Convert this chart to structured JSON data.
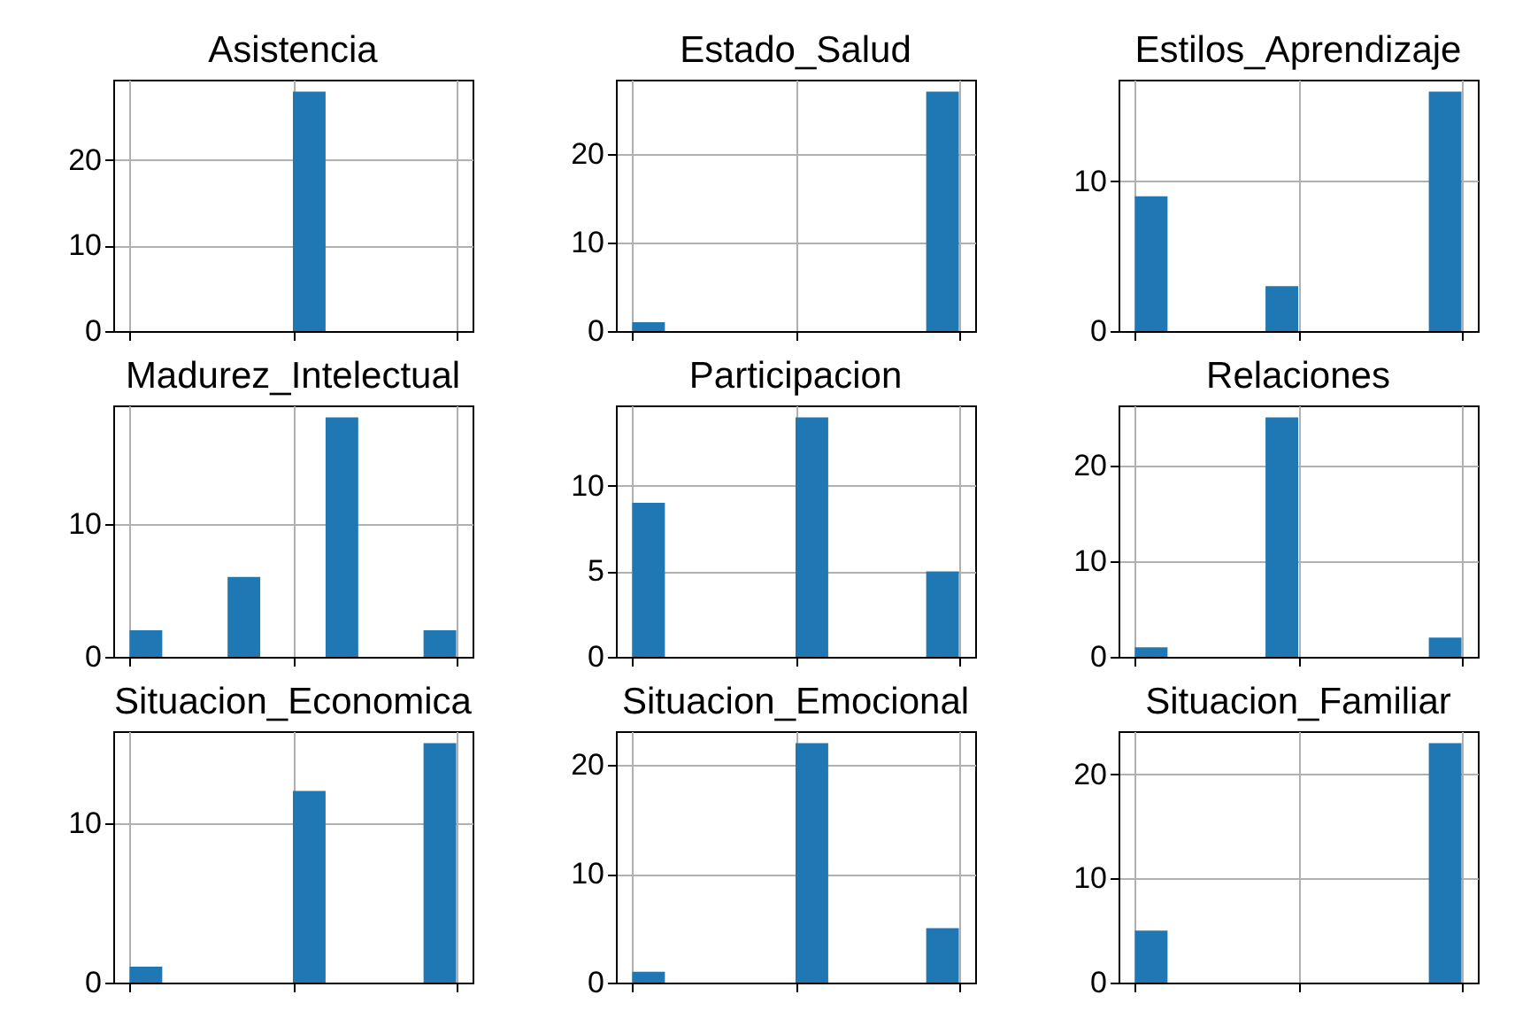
{
  "chart_data": [
    {
      "type": "bar",
      "title": "Asistencia",
      "categories": [
        null,
        null,
        null,
        null,
        null,
        null,
        null,
        null,
        null,
        null
      ],
      "values": [
        0,
        0,
        0,
        0,
        0,
        28,
        0,
        0,
        0,
        0
      ],
      "color": "#1f77b4",
      "ylim": [
        0,
        29.4
      ],
      "yticks": [
        0,
        10,
        20
      ],
      "grid": true,
      "tick_labels": "y"
    },
    {
      "type": "bar",
      "title": "Estado_Salud",
      "categories": [
        null,
        null,
        null,
        null,
        null,
        null,
        null,
        null,
        null,
        null
      ],
      "values": [
        1,
        0,
        0,
        0,
        0,
        0,
        0,
        0,
        0,
        27
      ],
      "color": "#1f77b4",
      "ylim": [
        0,
        28.35
      ],
      "yticks": [
        0,
        10,
        20
      ],
      "grid": true,
      "tick_labels": "y"
    },
    {
      "type": "bar",
      "title": "Estilos_Aprendizaje",
      "categories": [
        null,
        null,
        null,
        null,
        null,
        null,
        null,
        null,
        null,
        null
      ],
      "values": [
        9,
        0,
        0,
        0,
        3,
        0,
        0,
        0,
        0,
        16
      ],
      "color": "#1f77b4",
      "ylim": [
        0,
        16.8
      ],
      "yticks": [
        0,
        10
      ],
      "grid": true,
      "tick_labels": "y"
    },
    {
      "type": "bar",
      "title": "Madurez_Intelectual",
      "categories": [
        null,
        null,
        null,
        null,
        null,
        null,
        null,
        null,
        null,
        null
      ],
      "values": [
        2,
        0,
        0,
        6,
        0,
        0,
        18,
        0,
        0,
        2
      ],
      "color": "#1f77b4",
      "ylim": [
        0,
        18.9
      ],
      "yticks": [
        0,
        10
      ],
      "grid": true,
      "tick_labels": "y"
    },
    {
      "type": "bar",
      "title": "Participacion",
      "categories": [
        null,
        null,
        null,
        null,
        null,
        null,
        null,
        null,
        null,
        null
      ],
      "values": [
        9,
        0,
        0,
        0,
        0,
        14,
        0,
        0,
        0,
        5
      ],
      "color": "#1f77b4",
      "ylim": [
        0,
        14.7
      ],
      "yticks": [
        0,
        5,
        10
      ],
      "grid": true,
      "tick_labels": "y"
    },
    {
      "type": "bar",
      "title": "Relaciones",
      "categories": [
        null,
        null,
        null,
        null,
        null,
        null,
        null,
        null,
        null,
        null
      ],
      "values": [
        1,
        0,
        0,
        0,
        25,
        0,
        0,
        0,
        0,
        2
      ],
      "color": "#1f77b4",
      "ylim": [
        0,
        26.25
      ],
      "yticks": [
        0,
        10,
        20
      ],
      "grid": true,
      "tick_labels": "y"
    },
    {
      "type": "bar",
      "title": "Situacion_Economica",
      "categories": [
        null,
        null,
        null,
        null,
        null,
        null,
        null,
        null,
        null,
        null
      ],
      "values": [
        1,
        0,
        0,
        0,
        0,
        12,
        0,
        0,
        0,
        15
      ],
      "color": "#1f77b4",
      "ylim": [
        0,
        15.75
      ],
      "yticks": [
        0,
        10
      ],
      "grid": true,
      "tick_labels": "y"
    },
    {
      "type": "bar",
      "title": "Situacion_Emocional",
      "categories": [
        null,
        null,
        null,
        null,
        null,
        null,
        null,
        null,
        null,
        null
      ],
      "values": [
        1,
        0,
        0,
        0,
        0,
        22,
        0,
        0,
        0,
        5
      ],
      "color": "#1f77b4",
      "ylim": [
        0,
        23.1
      ],
      "yticks": [
        0,
        10,
        20
      ],
      "grid": true,
      "tick_labels": "y"
    },
    {
      "type": "bar",
      "title": "Situacion_Familiar",
      "categories": [
        null,
        null,
        null,
        null,
        null,
        null,
        null,
        null,
        null,
        null
      ],
      "values": [
        5,
        0,
        0,
        0,
        0,
        0,
        0,
        0,
        0,
        23
      ],
      "color": "#1f77b4",
      "ylim": [
        0,
        24.15
      ],
      "yticks": [
        0,
        10,
        20
      ],
      "grid": true,
      "tick_labels": "y"
    }
  ]
}
